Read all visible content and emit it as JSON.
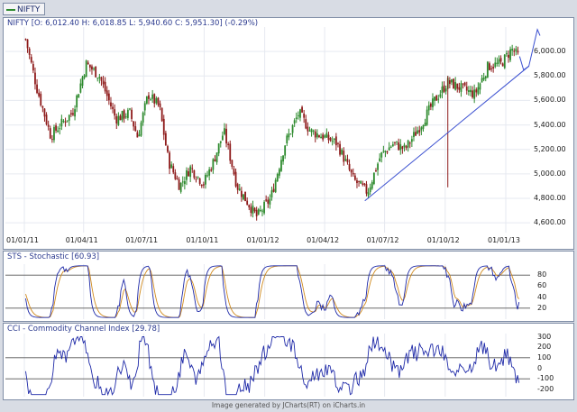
{
  "tab": {
    "label": "NIFTY"
  },
  "price_panel": {
    "title": "NIFTY [O: 6,012.40  H: 6,018.85  L: 5,940.60  C: 5,951.30] (-0.29%)"
  },
  "sts_panel": {
    "title": "STS - Stochastic [60.93]"
  },
  "cci_panel": {
    "title": "CCI - Commodity Channel Index [29.78]"
  },
  "footer": "Image generated by JCharts(RT) on iCharts.in",
  "colors": {
    "up": "#2d8a2d",
    "down": "#8e1b1b",
    "trendline": "#3a4fd0",
    "stoch_k": "#1f2aa8",
    "stoch_d": "#d08a1e",
    "cci": "#1f2aa8",
    "grid": "#e6e9f0"
  },
  "chart_data": [
    {
      "type": "candlestick",
      "title": "NIFTY",
      "x_ticks": [
        "01/01/11",
        "01/04/11",
        "01/07/11",
        "01/10/11",
        "01/01/12",
        "01/04/12",
        "01/07/12",
        "01/10/12",
        "01/01/13"
      ],
      "y_ticks": [
        "4,600.00",
        "4,800.00",
        "5,000.00",
        "5,200.00",
        "5,400.00",
        "5,600.00",
        "5,800.00",
        "6,000.00"
      ],
      "ylim": [
        4520,
        6200
      ],
      "last_ohlc": {
        "open": 6012.4,
        "high": 6018.85,
        "low": 5940.6,
        "close": 5951.3,
        "change_pct": -0.29
      },
      "approx_close_path": [
        {
          "date": "2011-01-03",
          "value": 6100
        },
        {
          "date": "2011-01-20",
          "value": 5700
        },
        {
          "date": "2011-02-10",
          "value": 5310
        },
        {
          "date": "2011-02-28",
          "value": 5420
        },
        {
          "date": "2011-03-15",
          "value": 5500
        },
        {
          "date": "2011-04-05",
          "value": 5900
        },
        {
          "date": "2011-04-25",
          "value": 5800
        },
        {
          "date": "2011-05-20",
          "value": 5450
        },
        {
          "date": "2011-06-10",
          "value": 5500
        },
        {
          "date": "2011-06-22",
          "value": 5300
        },
        {
          "date": "2011-07-08",
          "value": 5650
        },
        {
          "date": "2011-07-25",
          "value": 5550
        },
        {
          "date": "2011-08-08",
          "value": 5100
        },
        {
          "date": "2011-08-25",
          "value": 4900
        },
        {
          "date": "2011-09-10",
          "value": 5050
        },
        {
          "date": "2011-09-30",
          "value": 4920
        },
        {
          "date": "2011-10-15",
          "value": 5100
        },
        {
          "date": "2011-10-31",
          "value": 5350
        },
        {
          "date": "2011-11-20",
          "value": 4900
        },
        {
          "date": "2011-12-20",
          "value": 4650
        },
        {
          "date": "2012-01-10",
          "value": 4800
        },
        {
          "date": "2012-02-01",
          "value": 5250
        },
        {
          "date": "2012-02-22",
          "value": 5500
        },
        {
          "date": "2012-03-10",
          "value": 5350
        },
        {
          "date": "2012-04-01",
          "value": 5300
        },
        {
          "date": "2012-04-20",
          "value": 5250
        },
        {
          "date": "2012-05-15",
          "value": 4950
        },
        {
          "date": "2012-06-05",
          "value": 4850
        },
        {
          "date": "2012-06-25",
          "value": 5150
        },
        {
          "date": "2012-07-15",
          "value": 5250
        },
        {
          "date": "2012-08-01",
          "value": 5200
        },
        {
          "date": "2012-08-25",
          "value": 5400
        },
        {
          "date": "2012-09-15",
          "value": 5600
        },
        {
          "date": "2012-10-05",
          "value": 5750
        },
        {
          "date": "2012-10-25",
          "value": 5700
        },
        {
          "date": "2012-11-15",
          "value": 5650
        },
        {
          "date": "2012-12-05",
          "value": 5880
        },
        {
          "date": "2012-12-25",
          "value": 5900
        },
        {
          "date": "2013-01-10",
          "value": 6020
        },
        {
          "date": "2013-01-22",
          "value": 5951.3
        }
      ],
      "trendline": [
        {
          "date": "2012-06-01",
          "value": 4780
        },
        {
          "date": "2013-02-05",
          "value": 5880
        }
      ],
      "projection": [
        {
          "date": "2013-01-22",
          "value": 5960
        },
        {
          "date": "2013-01-28",
          "value": 5850
        },
        {
          "date": "2013-02-05",
          "value": 5880
        },
        {
          "date": "2013-02-18",
          "value": 6180
        },
        {
          "date": "2013-02-22",
          "value": 6130
        }
      ],
      "spike": {
        "date": "2012-10-05",
        "high": 5800,
        "low": 4890
      }
    },
    {
      "type": "line",
      "title": "STS - Stochastic",
      "last_value": 60.93,
      "y_ticks": [
        "20",
        "40",
        "60",
        "80"
      ],
      "ylim": [
        0,
        100
      ],
      "reference_lines": [
        20,
        80
      ]
    },
    {
      "type": "line",
      "title": "CCI - Commodity Channel Index",
      "last_value": 29.78,
      "y_ticks": [
        "-200",
        "-100",
        "0",
        "100",
        "200",
        "300"
      ],
      "ylim": [
        -270,
        330
      ],
      "reference_lines": [
        -100,
        100
      ]
    }
  ]
}
